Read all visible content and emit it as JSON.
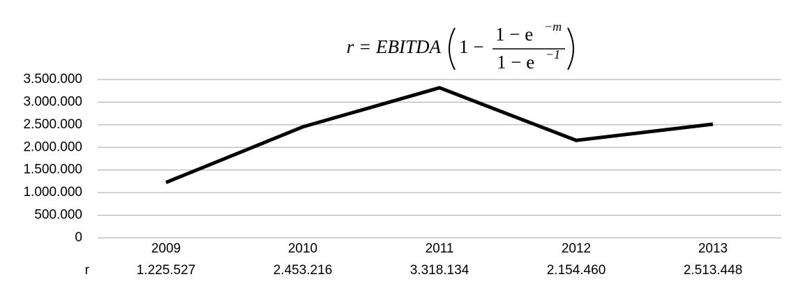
{
  "chart_data": {
    "type": "line",
    "formula": {
      "lhs": "r = EBITDA",
      "one": "1 −",
      "num": "1 − e",
      "num_exp": "−m",
      "den": "1 − e",
      "den_exp": "−1"
    },
    "categories": [
      "2009",
      "2010",
      "2011",
      "2012",
      "2013"
    ],
    "series": [
      {
        "name": "r",
        "color": "#000000",
        "values": [
          1225527,
          2453216,
          3318134,
          2154460,
          2513448
        ],
        "value_labels": [
          "1.225.527",
          "2.453.216",
          "3.318.134",
          "2.154.460",
          "2.513.448"
        ]
      }
    ],
    "ylim": [
      0,
      3500000
    ],
    "yticks": [
      0,
      {
        "value": 500000,
        "label": "500.000"
      },
      {
        "value": 1000000,
        "label": "1.000.000"
      },
      {
        "value": 1500000,
        "label": "1.500.000"
      },
      {
        "value": 2000000,
        "label": "2.000.000"
      },
      {
        "value": 2500000,
        "label": "2.500.000"
      },
      {
        "value": 3000000,
        "label": "3.000.000"
      },
      {
        "value": 3500000,
        "label": "3.500.000"
      }
    ],
    "grid": true
  }
}
